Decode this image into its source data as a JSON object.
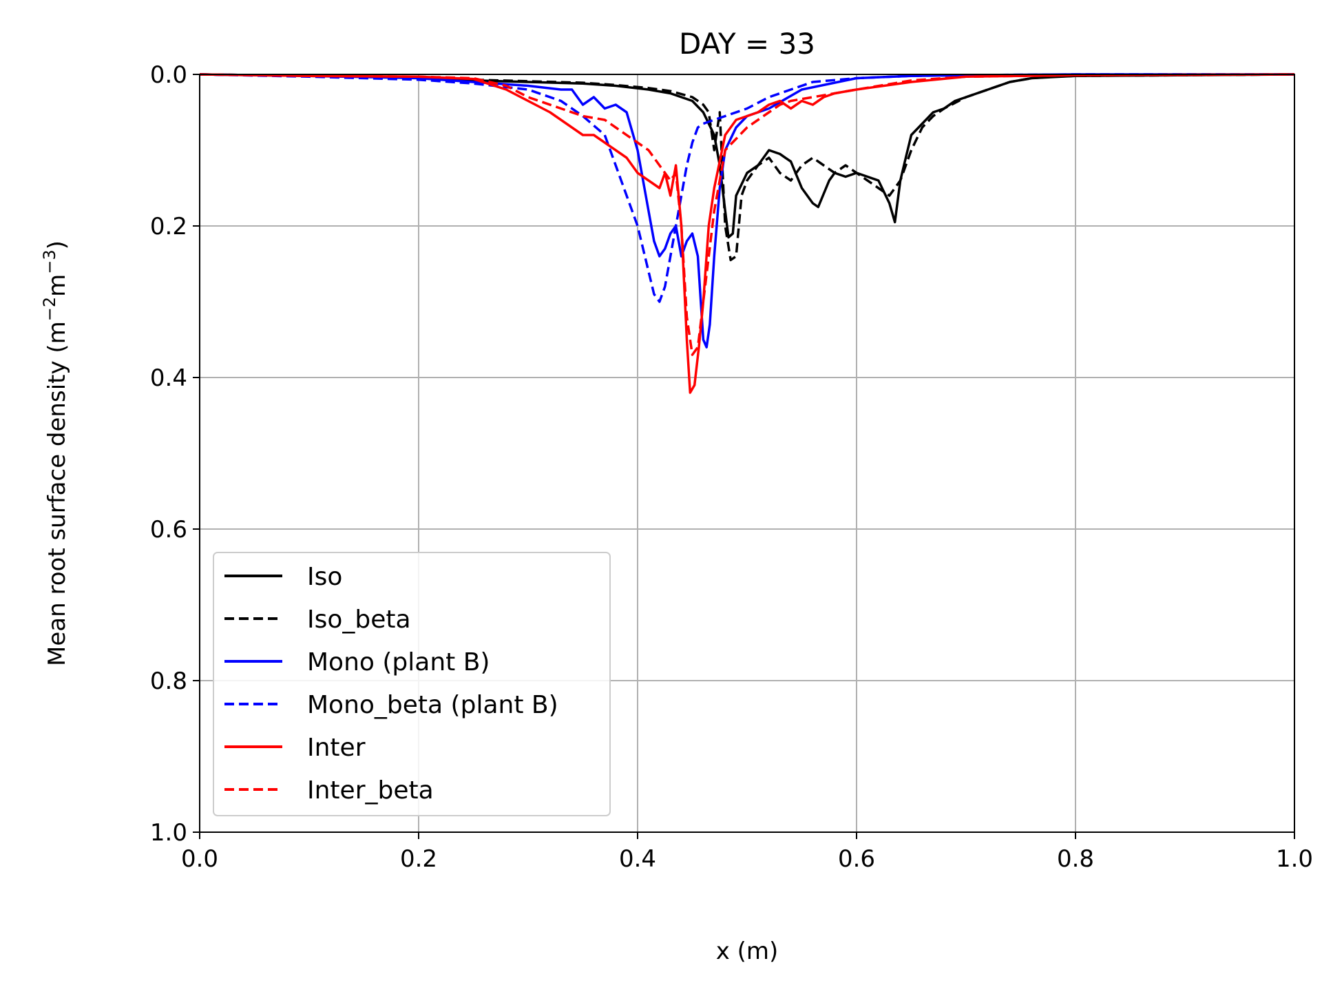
{
  "chart_data": {
    "type": "line",
    "title": "DAY = 33",
    "xlabel": "x (m)",
    "ylabel_main": "Mean root surface density (m",
    "ylabel_sup1": "−2",
    "ylabel_mid": "m",
    "ylabel_sup2": "−3",
    "ylabel_end": ")",
    "xlim": [
      0.0,
      1.0
    ],
    "ylim": [
      0.0,
      1.0
    ],
    "y_inverted": true,
    "grid": true,
    "legend_position": "lower-left",
    "xticks": [
      "0.0",
      "0.2",
      "0.4",
      "0.6",
      "0.8",
      "1.0"
    ],
    "yticks": [
      "0.0",
      "0.2",
      "0.4",
      "0.6",
      "0.8",
      "1.0"
    ],
    "series": [
      {
        "name": "Iso",
        "color": "#000000",
        "dash": "solid",
        "x": [
          0.0,
          0.1,
          0.2,
          0.25,
          0.3,
          0.35,
          0.38,
          0.41,
          0.43,
          0.45,
          0.46,
          0.47,
          0.475,
          0.48,
          0.483,
          0.487,
          0.49,
          0.5,
          0.51,
          0.52,
          0.53,
          0.54,
          0.55,
          0.56,
          0.565,
          0.575,
          0.58,
          0.59,
          0.6,
          0.61,
          0.62,
          0.63,
          0.635,
          0.64,
          0.645,
          0.65,
          0.66,
          0.67,
          0.68,
          0.69,
          0.7,
          0.72,
          0.74,
          0.76,
          0.8,
          1.0
        ],
        "y": [
          0.0,
          0.002,
          0.004,
          0.008,
          0.01,
          0.012,
          0.015,
          0.02,
          0.025,
          0.035,
          0.05,
          0.08,
          0.12,
          0.18,
          0.215,
          0.21,
          0.16,
          0.13,
          0.12,
          0.1,
          0.105,
          0.115,
          0.15,
          0.17,
          0.175,
          0.14,
          0.13,
          0.135,
          0.13,
          0.135,
          0.14,
          0.17,
          0.195,
          0.14,
          0.11,
          0.08,
          0.065,
          0.05,
          0.045,
          0.035,
          0.03,
          0.02,
          0.01,
          0.005,
          0.002,
          0.0
        ]
      },
      {
        "name": "Iso_beta",
        "color": "#000000",
        "dash": "dashed",
        "x": [
          0.0,
          0.1,
          0.2,
          0.25,
          0.3,
          0.35,
          0.38,
          0.41,
          0.43,
          0.45,
          0.46,
          0.465,
          0.47,
          0.475,
          0.48,
          0.485,
          0.49,
          0.495,
          0.5,
          0.51,
          0.52,
          0.53,
          0.54,
          0.55,
          0.56,
          0.57,
          0.58,
          0.59,
          0.6,
          0.61,
          0.62,
          0.63,
          0.64,
          0.65,
          0.66,
          0.67,
          0.68,
          0.7,
          0.72,
          0.74,
          0.76,
          0.78,
          0.8,
          1.0
        ],
        "y": [
          0.0,
          0.002,
          0.004,
          0.007,
          0.009,
          0.011,
          0.014,
          0.018,
          0.022,
          0.03,
          0.04,
          0.05,
          0.1,
          0.05,
          0.2,
          0.245,
          0.24,
          0.16,
          0.14,
          0.12,
          0.11,
          0.13,
          0.14,
          0.12,
          0.11,
          0.12,
          0.13,
          0.12,
          0.13,
          0.14,
          0.15,
          0.16,
          0.14,
          0.1,
          0.07,
          0.055,
          0.045,
          0.03,
          0.02,
          0.01,
          0.005,
          0.003,
          0.002,
          0.0
        ]
      },
      {
        "name": "Mono (plant B)",
        "color": "#0000ff",
        "dash": "solid",
        "x": [
          0.0,
          0.1,
          0.2,
          0.25,
          0.3,
          0.33,
          0.34,
          0.35,
          0.36,
          0.37,
          0.38,
          0.39,
          0.4,
          0.41,
          0.415,
          0.42,
          0.425,
          0.43,
          0.435,
          0.44,
          0.445,
          0.45,
          0.455,
          0.46,
          0.463,
          0.466,
          0.47,
          0.475,
          0.48,
          0.49,
          0.5,
          0.52,
          0.55,
          0.6,
          0.65,
          0.7,
          0.8,
          1.0
        ],
        "y": [
          0.0,
          0.002,
          0.005,
          0.01,
          0.015,
          0.02,
          0.02,
          0.04,
          0.03,
          0.045,
          0.04,
          0.05,
          0.1,
          0.18,
          0.22,
          0.24,
          0.23,
          0.21,
          0.2,
          0.24,
          0.22,
          0.21,
          0.24,
          0.35,
          0.36,
          0.33,
          0.24,
          0.15,
          0.1,
          0.07,
          0.055,
          0.045,
          0.02,
          0.005,
          0.002,
          0.001,
          0.0,
          0.0
        ]
      },
      {
        "name": "Mono_beta (plant B)",
        "color": "#0000ff",
        "dash": "dashed",
        "x": [
          0.0,
          0.1,
          0.2,
          0.25,
          0.3,
          0.33,
          0.35,
          0.37,
          0.38,
          0.39,
          0.4,
          0.41,
          0.415,
          0.42,
          0.425,
          0.43,
          0.435,
          0.44,
          0.445,
          0.45,
          0.455,
          0.46,
          0.47,
          0.48,
          0.5,
          0.52,
          0.54,
          0.56,
          0.6,
          0.65,
          0.7,
          0.8,
          1.0
        ],
        "y": [
          0.0,
          0.003,
          0.007,
          0.012,
          0.02,
          0.035,
          0.055,
          0.08,
          0.12,
          0.16,
          0.2,
          0.26,
          0.29,
          0.3,
          0.28,
          0.24,
          0.2,
          0.16,
          0.12,
          0.09,
          0.07,
          0.065,
          0.06,
          0.055,
          0.045,
          0.03,
          0.02,
          0.01,
          0.005,
          0.002,
          0.001,
          0.0,
          0.0
        ]
      },
      {
        "name": "Inter",
        "color": "#ff0000",
        "dash": "solid",
        "x": [
          0.0,
          0.1,
          0.2,
          0.25,
          0.28,
          0.3,
          0.32,
          0.34,
          0.35,
          0.36,
          0.37,
          0.38,
          0.39,
          0.4,
          0.41,
          0.42,
          0.425,
          0.43,
          0.435,
          0.44,
          0.445,
          0.448,
          0.452,
          0.456,
          0.46,
          0.465,
          0.47,
          0.48,
          0.49,
          0.5,
          0.51,
          0.52,
          0.53,
          0.54,
          0.55,
          0.56,
          0.57,
          0.58,
          0.6,
          0.65,
          0.7,
          0.8,
          1.0
        ],
        "y": [
          0.0,
          0.002,
          0.003,
          0.006,
          0.02,
          0.035,
          0.05,
          0.07,
          0.08,
          0.08,
          0.09,
          0.1,
          0.11,
          0.13,
          0.14,
          0.15,
          0.13,
          0.16,
          0.12,
          0.2,
          0.35,
          0.42,
          0.41,
          0.36,
          0.3,
          0.2,
          0.15,
          0.08,
          0.06,
          0.055,
          0.05,
          0.04,
          0.035,
          0.045,
          0.035,
          0.04,
          0.03,
          0.025,
          0.02,
          0.01,
          0.003,
          0.001,
          0.0
        ]
      },
      {
        "name": "Inter_beta",
        "color": "#ff0000",
        "dash": "dashed",
        "x": [
          0.0,
          0.1,
          0.2,
          0.25,
          0.28,
          0.3,
          0.33,
          0.35,
          0.37,
          0.38,
          0.4,
          0.41,
          0.42,
          0.43,
          0.435,
          0.44,
          0.445,
          0.45,
          0.455,
          0.46,
          0.47,
          0.48,
          0.49,
          0.5,
          0.51,
          0.52,
          0.53,
          0.54,
          0.56,
          0.6,
          0.65,
          0.7,
          0.8,
          1.0
        ],
        "y": [
          0.0,
          0.002,
          0.003,
          0.005,
          0.015,
          0.03,
          0.045,
          0.055,
          0.06,
          0.07,
          0.09,
          0.1,
          0.12,
          0.14,
          0.13,
          0.2,
          0.32,
          0.37,
          0.36,
          0.3,
          0.18,
          0.1,
          0.085,
          0.07,
          0.06,
          0.05,
          0.04,
          0.035,
          0.03,
          0.02,
          0.008,
          0.003,
          0.001,
          0.0
        ]
      }
    ]
  }
}
